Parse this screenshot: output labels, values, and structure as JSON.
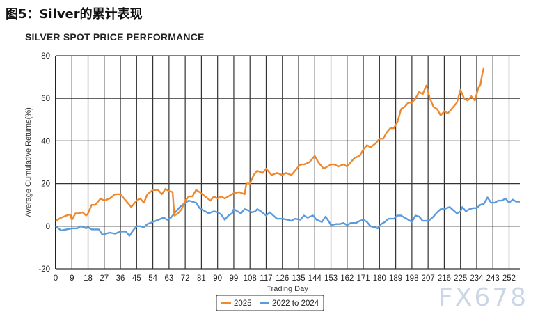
{
  "figure_title": "图5：Silver的累计表现",
  "watermark": "FX678",
  "chart_data": {
    "type": "line",
    "title": "SILVER SPOT PRICE PERFORMANCE",
    "xlabel": "Trading Day",
    "ylabel": "Average Cumulative Returns(%)",
    "xlim": [
      0,
      258
    ],
    "ylim": [
      -20,
      80
    ],
    "xticks": [
      0,
      9,
      18,
      27,
      36,
      45,
      54,
      63,
      72,
      81,
      90,
      99,
      108,
      117,
      126,
      135,
      144,
      153,
      162,
      171,
      180,
      189,
      198,
      207,
      216,
      225,
      234,
      243,
      252
    ],
    "yticks": [
      -20,
      0,
      20,
      40,
      60,
      80
    ],
    "grid": true,
    "legend_placement": "bottom",
    "series": [
      {
        "name": "2025",
        "color": "#F0882E",
        "x": [
          0,
          3,
          6,
          8,
          9,
          11,
          13,
          15,
          17,
          18,
          20,
          22,
          25,
          27,
          30,
          33,
          36,
          38,
          40,
          42,
          45,
          47,
          49,
          51,
          54,
          57,
          59,
          61,
          63,
          65,
          66,
          68,
          70,
          72,
          74,
          76,
          78,
          80,
          83,
          86,
          88,
          90,
          92,
          94,
          96,
          99,
          102,
          105,
          106,
          108,
          110,
          112,
          115,
          117,
          120,
          123,
          126,
          128,
          131,
          134,
          136,
          138,
          141,
          144,
          146,
          149,
          151,
          153,
          155,
          157,
          160,
          162,
          164,
          166,
          169,
          171,
          173,
          175,
          178,
          180,
          182,
          184,
          186,
          188,
          190,
          192,
          194,
          196,
          198,
          200,
          202,
          204,
          206,
          208,
          210,
          212,
          214,
          216,
          218,
          220,
          223,
          225,
          227,
          229,
          231,
          233,
          235,
          236,
          237,
          238
        ],
        "y": [
          2.5,
          4,
          5,
          5.5,
          3,
          6,
          6,
          6.5,
          5,
          6,
          10,
          10,
          13,
          12,
          13,
          15,
          15,
          13,
          11,
          9,
          12,
          13,
          11,
          15,
          17,
          17,
          15,
          17.5,
          16.5,
          16,
          5,
          6,
          8,
          12,
          14,
          14,
          17,
          16,
          14,
          12,
          14,
          13,
          14,
          13,
          14,
          15.5,
          16,
          15,
          20,
          20,
          24,
          26,
          25,
          27,
          24,
          25,
          24,
          25,
          24,
          27,
          29,
          29,
          30,
          33,
          30,
          27,
          28,
          29,
          29,
          28,
          29,
          28,
          30,
          32,
          33,
          36,
          38,
          37,
          39,
          41,
          41,
          44,
          46,
          46,
          49,
          55,
          56,
          58,
          58,
          60,
          63,
          62,
          66,
          60,
          56,
          55,
          52,
          54,
          53,
          55,
          58,
          64,
          60,
          59,
          61,
          59,
          65,
          66,
          71,
          74.5
        ]
      },
      {
        "name": "2022 to 2024",
        "color": "#5B9BDC",
        "x": [
          0,
          3,
          6,
          9,
          12,
          14,
          17,
          18,
          20,
          24,
          26,
          28,
          30,
          33,
          36,
          39,
          41,
          43,
          45,
          47,
          49,
          51,
          54,
          57,
          60,
          62,
          64,
          66,
          69,
          72,
          74,
          76,
          78,
          80,
          83,
          85,
          88,
          90,
          92,
          94,
          96,
          98,
          99,
          101,
          103,
          105,
          107,
          109,
          111,
          112,
          114,
          117,
          119,
          121,
          123,
          126,
          129,
          131,
          133,
          136,
          138,
          140,
          143,
          145,
          148,
          150,
          152,
          153,
          156,
          158,
          160,
          162,
          164,
          167,
          169,
          171,
          173,
          175,
          177,
          179,
          181,
          183,
          185,
          188,
          190,
          192,
          194,
          196,
          198,
          200,
          202,
          204,
          206,
          208,
          210,
          212,
          214,
          216,
          219,
          221,
          223,
          225,
          226,
          228,
          230,
          232,
          234,
          236,
          238,
          240,
          242,
          244,
          246,
          248,
          250,
          252,
          254,
          256,
          258
        ],
        "y": [
          0,
          -2,
          -1.5,
          -1,
          -1,
          0,
          -1,
          -0.5,
          -1.5,
          -1.5,
          -4,
          -3.5,
          -3,
          -3.5,
          -2.5,
          -2.5,
          -4.5,
          -2,
          0,
          0,
          -0.5,
          1,
          2,
          3,
          4,
          3,
          4,
          6,
          9,
          11,
          12,
          11.5,
          11,
          8.5,
          7,
          6,
          7,
          6.5,
          5.5,
          3,
          5,
          6,
          8,
          7,
          6,
          8,
          7.5,
          6.5,
          7,
          8,
          7,
          5,
          6.5,
          5,
          3.5,
          3.5,
          3,
          2.5,
          3.5,
          3,
          5,
          4,
          5,
          3,
          2,
          4.5,
          2,
          0.5,
          1,
          1,
          1.5,
          0.5,
          1.5,
          1.5,
          2.5,
          3,
          2,
          0,
          -0.5,
          -1,
          1,
          2,
          3.5,
          3.5,
          5,
          5,
          4,
          3,
          2,
          5,
          4.5,
          2.5,
          2.5,
          3,
          4.5,
          6.5,
          8,
          8,
          9,
          7.5,
          6,
          7,
          9,
          7,
          8,
          8.5,
          8.5,
          10,
          10.5,
          13.5,
          11,
          11,
          12,
          12,
          13,
          11,
          12.5,
          11.5,
          11.5
        ]
      }
    ]
  }
}
